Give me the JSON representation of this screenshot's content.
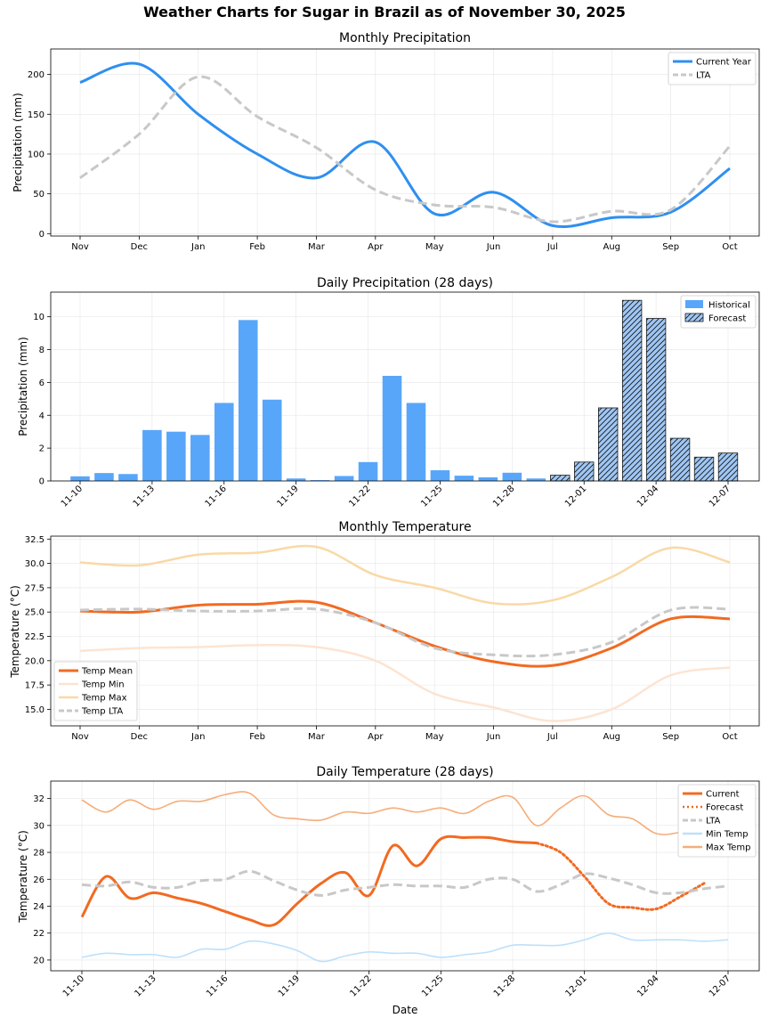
{
  "title": "Weather Charts for Sugar in Brazil as of November 30, 2025",
  "chart_data": [
    {
      "type": "line",
      "title": "Monthly Precipitation",
      "xlabel": "",
      "ylabel": "Precipitation (mm)",
      "categories": [
        "Nov",
        "Dec",
        "Jan",
        "Feb",
        "Mar",
        "Apr",
        "May",
        "Jun",
        "Jul",
        "Aug",
        "Sep",
        "Oct"
      ],
      "ylim": [
        -3,
        232
      ],
      "yticks": [
        0,
        50,
        100,
        150,
        200
      ],
      "grid": true,
      "legend_position": "top-right",
      "series": [
        {
          "name": "Current Year",
          "color": "#2e8ff0",
          "style": "solid",
          "values": [
            190,
            213,
            150,
            100,
            70,
            115,
            25,
            52,
            10,
            20,
            27,
            82
          ]
        },
        {
          "name": "LTA",
          "color": "#c8c8c8",
          "style": "dashed",
          "values": [
            70,
            125,
            197,
            147,
            108,
            55,
            36,
            33,
            15,
            28,
            30,
            110
          ]
        }
      ]
    },
    {
      "type": "bar",
      "title": "Daily Precipitation (28 days)",
      "xlabel": "",
      "ylabel": "Precipitation (mm)",
      "categories": [
        "11-10",
        "11-11",
        "11-12",
        "11-13",
        "11-14",
        "11-15",
        "11-16",
        "11-17",
        "11-18",
        "11-19",
        "11-20",
        "11-21",
        "11-22",
        "11-23",
        "11-24",
        "11-25",
        "11-26",
        "11-27",
        "11-28",
        "11-29",
        "11-30",
        "12-01",
        "12-02",
        "12-03",
        "12-04",
        "12-05",
        "12-06",
        "12-07"
      ],
      "tick_labels": [
        "11-10",
        "11-13",
        "11-16",
        "11-19",
        "11-22",
        "11-25",
        "11-28",
        "12-01",
        "12-04",
        "12-07"
      ],
      "ylim": [
        0,
        11.5
      ],
      "yticks": [
        0,
        2,
        4,
        6,
        8,
        10
      ],
      "grid": true,
      "legend_position": "top-right",
      "series": [
        {
          "name": "Historical",
          "color": "#58a6fa",
          "values": [
            0.28,
            0.48,
            0.42,
            3.1,
            3.0,
            2.8,
            4.75,
            9.8,
            4.95,
            0.15,
            0.05,
            0.3,
            1.15,
            6.4,
            4.75,
            0.65,
            0.32,
            0.22,
            0.5,
            0.15,
            null,
            null,
            null,
            null,
            null,
            null,
            null,
            null
          ]
        },
        {
          "name": "Forecast",
          "color": "#9fc7f5",
          "hatch": true,
          "values": [
            null,
            null,
            null,
            null,
            null,
            null,
            null,
            null,
            null,
            null,
            null,
            null,
            null,
            null,
            null,
            null,
            null,
            null,
            null,
            null,
            0.35,
            1.15,
            4.45,
            11.0,
            9.9,
            2.6,
            1.45,
            1.7
          ]
        }
      ]
    },
    {
      "type": "line",
      "title": "Monthly Temperature",
      "xlabel": "",
      "ylabel": "Temperature (°C)",
      "categories": [
        "Nov",
        "Dec",
        "Jan",
        "Feb",
        "Mar",
        "Apr",
        "May",
        "Jun",
        "Jul",
        "Aug",
        "Sep",
        "Oct"
      ],
      "ylim": [
        13.3,
        32.8
      ],
      "yticks": [
        15.0,
        17.5,
        20.0,
        22.5,
        25.0,
        27.5,
        30.0,
        32.5
      ],
      "grid": true,
      "legend_position": "bottom-left",
      "series": [
        {
          "name": "Temp Mean",
          "color": "#f26a21",
          "style": "solid",
          "values": [
            25.1,
            25.0,
            25.7,
            25.8,
            26.0,
            23.9,
            21.5,
            19.9,
            19.5,
            21.3,
            24.3,
            24.3
          ]
        },
        {
          "name": "Temp Min",
          "color": "#fde4d2",
          "style": "solid",
          "values": [
            21.0,
            21.3,
            21.4,
            21.6,
            21.4,
            20.0,
            16.6,
            15.2,
            13.8,
            15.0,
            18.5,
            19.3
          ]
        },
        {
          "name": "Temp Max",
          "color": "#f9d9a6",
          "style": "solid",
          "values": [
            30.1,
            29.8,
            30.9,
            31.1,
            31.7,
            28.8,
            27.5,
            25.9,
            26.2,
            28.6,
            31.6,
            30.1
          ]
        },
        {
          "name": "Temp LTA",
          "color": "#c8c8c8",
          "style": "dashed",
          "values": [
            25.2,
            25.3,
            25.1,
            25.1,
            25.3,
            23.9,
            21.3,
            20.6,
            20.6,
            21.9,
            25.2,
            25.3
          ]
        }
      ]
    },
    {
      "type": "line",
      "title": "Daily Temperature (28 days)",
      "xlabel": "Date",
      "ylabel": "Temperature (°C)",
      "categories": [
        "11-10",
        "11-11",
        "11-12",
        "11-13",
        "11-14",
        "11-15",
        "11-16",
        "11-17",
        "11-18",
        "11-19",
        "11-20",
        "11-21",
        "11-22",
        "11-23",
        "11-24",
        "11-25",
        "11-26",
        "11-27",
        "11-28",
        "11-29",
        "11-30",
        "12-01",
        "12-02",
        "12-03",
        "12-04",
        "12-05",
        "12-06",
        "12-07"
      ],
      "tick_labels": [
        "11-10",
        "11-13",
        "11-16",
        "11-19",
        "11-22",
        "11-25",
        "11-28",
        "12-01",
        "12-04",
        "12-07"
      ],
      "ylim": [
        19.2,
        33.3
      ],
      "yticks": [
        20,
        22,
        24,
        26,
        28,
        30,
        32
      ],
      "grid": true,
      "legend_position": "top-right",
      "series": [
        {
          "name": "Current",
          "color": "#f26a21",
          "style": "solid",
          "values": [
            23.2,
            26.2,
            24.6,
            25.0,
            24.6,
            24.2,
            23.6,
            23.0,
            22.6,
            24.2,
            25.7,
            26.5,
            24.8,
            28.5,
            27.0,
            29.0,
            29.1,
            29.1,
            28.8,
            28.7,
            null,
            null,
            null,
            null,
            null,
            null,
            null,
            null
          ]
        },
        {
          "name": "Forecast",
          "color": "#f26a21",
          "style": "dotted",
          "values": [
            null,
            null,
            null,
            null,
            null,
            null,
            null,
            null,
            null,
            null,
            null,
            null,
            null,
            null,
            null,
            null,
            null,
            null,
            null,
            28.7,
            28.0,
            26.2,
            24.2,
            23.9,
            23.8,
            24.7,
            25.7,
            null
          ]
        },
        {
          "name": "LTA",
          "color": "#c8c8c8",
          "style": "dashed",
          "values": [
            25.6,
            25.5,
            25.8,
            25.4,
            25.4,
            25.9,
            26.0,
            26.6,
            25.9,
            25.2,
            24.8,
            25.2,
            25.4,
            25.6,
            25.5,
            25.5,
            25.4,
            26.0,
            26.0,
            25.1,
            25.6,
            26.4,
            26.1,
            25.6,
            25.0,
            25.0,
            25.3,
            25.5
          ]
        },
        {
          "name": "Min Temp",
          "color": "#bde0fb",
          "style": "solid",
          "values": [
            20.2,
            20.5,
            20.4,
            20.4,
            20.2,
            20.8,
            20.8,
            21.4,
            21.2,
            20.7,
            19.9,
            20.3,
            20.6,
            20.5,
            20.5,
            20.2,
            20.4,
            20.6,
            21.1,
            21.1,
            21.1,
            21.5,
            22.0,
            21.5,
            21.5,
            21.5,
            21.4,
            21.5
          ]
        },
        {
          "name": "Max Temp",
          "color": "#f6ad7a",
          "style": "solid",
          "values": [
            31.9,
            31.0,
            31.9,
            31.2,
            31.8,
            31.8,
            32.3,
            32.4,
            30.8,
            30.5,
            30.4,
            31.0,
            30.9,
            31.3,
            31.0,
            31.3,
            30.9,
            31.8,
            32.1,
            30.0,
            31.3,
            32.2,
            30.8,
            30.5,
            29.4,
            29.5,
            30.1,
            30.4
          ]
        }
      ]
    }
  ]
}
